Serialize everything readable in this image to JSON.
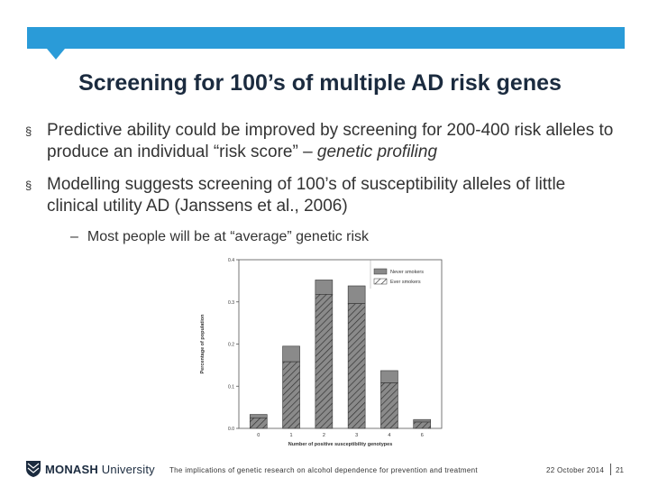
{
  "header": {
    "accent_color": "#2a9bd8",
    "title": "Screening for 100’s of multiple AD risk genes"
  },
  "bullets": [
    {
      "marker": "§",
      "text": "Predictive ability could be improved by screening for 200-400 risk alleles to produce an individual “risk score” – ",
      "emphasis": "genetic profiling"
    },
    {
      "marker": "§",
      "text": "Modelling suggests screening of 100’s of susceptibility alleles of little clinical utility AD (Janssens et al., 2006)"
    }
  ],
  "sub_bullet": {
    "marker": "–",
    "text": "Most people will be at “average” genetic risk"
  },
  "chart_data": {
    "type": "bar",
    "xlabel": "Number of positive susceptibility genotypes",
    "ylabel": "Percentage of population",
    "categories": [
      "0",
      "1",
      "2",
      "3",
      "4",
      "6"
    ],
    "ylim": [
      0,
      0.4
    ],
    "yticks": [
      "0.0",
      "0.1",
      "0.2",
      "0.3",
      "0.4"
    ],
    "legend_position": "top-right",
    "series": [
      {
        "name": "Never smokers",
        "fill": "#8a8a8a",
        "pattern": "solid",
        "values": [
          0.033,
          0.195,
          0.352,
          0.338,
          0.137,
          0.021
        ]
      },
      {
        "name": "Ever smokers",
        "fill": "#ffffff",
        "pattern": "hatched",
        "values": [
          0.025,
          0.158,
          0.318,
          0.296,
          0.108,
          0.015
        ]
      }
    ]
  },
  "footer": {
    "logo_name": "monash-shield-icon",
    "logo_primary": "MONASH",
    "logo_secondary": " University",
    "caption": "The implications of genetic research on alcohol dependence for prevention and treatment",
    "date": "22 October 2014",
    "page": "21"
  }
}
